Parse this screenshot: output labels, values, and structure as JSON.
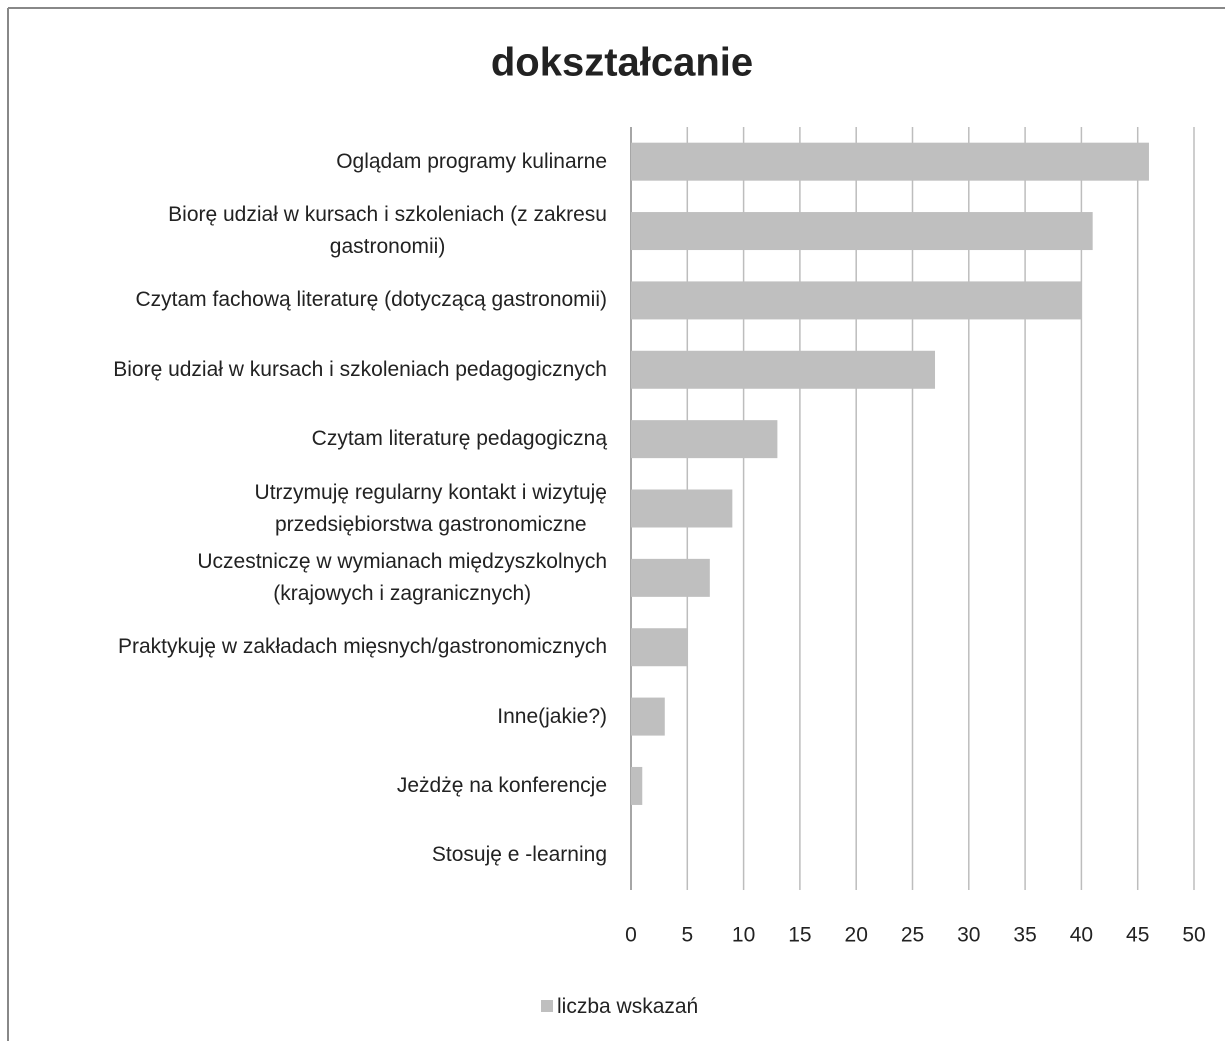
{
  "chart_data": {
    "type": "barh",
    "title": "dokształcanie",
    "categories": [
      "Oglądam programy kulinarne",
      "Biorę udział w kursach i szkoleniach (z zakresu\ngastronomii)",
      "Czytam fachową literaturę (dotyczącą gastronomii)",
      "Biorę udział w kursach i szkoleniach pedagogicznych",
      "Czytam literaturę pedagogiczną",
      "Utrzymuję regularny kontakt i wizytuję\nprzedsiębiorstwa gastronomiczne",
      "Uczestniczę w wymianach międzyszkolnych\n(krajowych i zagranicznych)",
      "Praktykuję w zakładach mięsnych/gastronomicznych",
      "Inne(jakie?)",
      "Jeżdżę na konferencje ",
      "Stosuję e -learning"
    ],
    "series": [
      {
        "name": "liczba wskazań",
        "color": "#bfbfbf",
        "values": [
          46,
          41,
          40,
          27,
          13,
          9,
          7,
          5,
          3,
          1,
          0
        ]
      }
    ],
    "xlim": [
      0,
      50
    ],
    "xticks": [
      0,
      5,
      10,
      15,
      20,
      25,
      30,
      35,
      40,
      45,
      50
    ],
    "grid": true,
    "legend": "bottom"
  }
}
